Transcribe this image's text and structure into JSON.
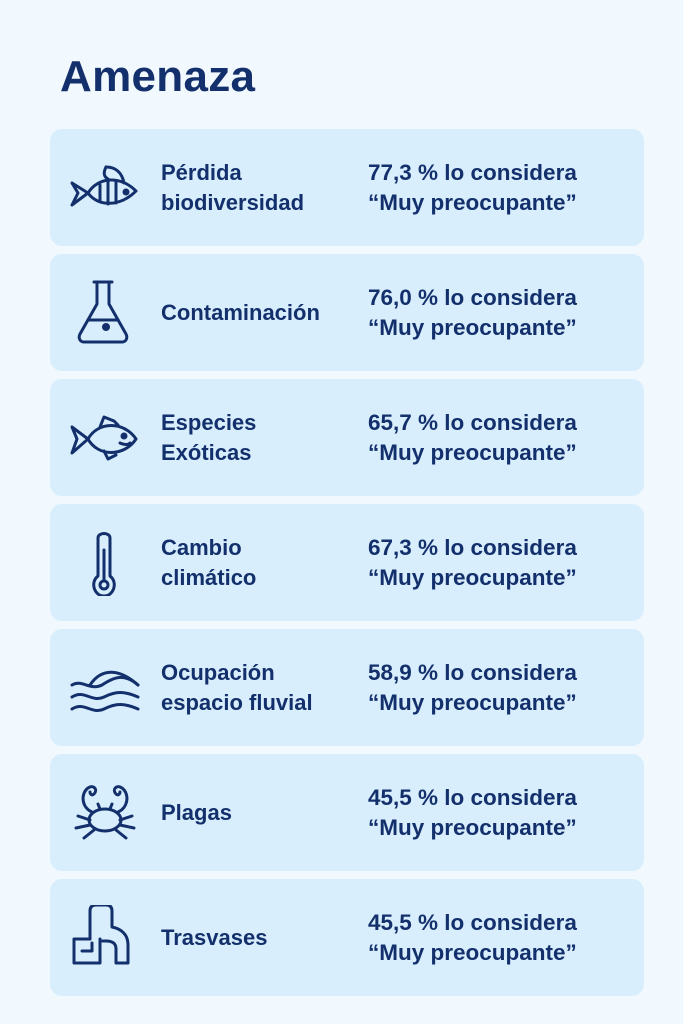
{
  "title": "Amenaza",
  "items": [
    {
      "icon": "striped-fish-icon",
      "label_lines": [
        "Pérdida",
        "biodiversidad"
      ],
      "stat": "77,3 % lo considera",
      "rating": "“Muy preocupante”"
    },
    {
      "icon": "flask-icon",
      "label_lines": [
        "Contaminación"
      ],
      "stat": "76,0 % lo considera",
      "rating": "“Muy preocupante”"
    },
    {
      "icon": "fish-icon",
      "label_lines": [
        "Especies",
        "Exóticas"
      ],
      "stat": "65,7 % lo considera",
      "rating": "“Muy preocupante”"
    },
    {
      "icon": "thermometer-icon",
      "label_lines": [
        "Cambio",
        "climático"
      ],
      "stat": "67,3 % lo considera",
      "rating": "“Muy preocupante”"
    },
    {
      "icon": "waves-icon",
      "label_lines": [
        "Ocupación",
        "espacio fluvial"
      ],
      "stat": "58,9 % lo considera",
      "rating": "“Muy preocupante”"
    },
    {
      "icon": "crab-icon",
      "label_lines": [
        "Plagas"
      ],
      "stat": "45,5 % lo considera",
      "rating": "“Muy preocupante”"
    },
    {
      "icon": "pipe-icon",
      "label_lines": [
        "Trasvases"
      ],
      "stat": "45,5 % lo considera",
      "rating": "“Muy preocupante”"
    }
  ]
}
